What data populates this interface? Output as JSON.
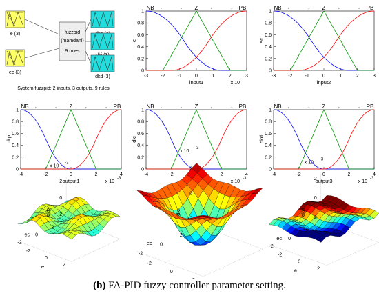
{
  "fis": {
    "inputs": [
      {
        "label": "e (3)",
        "color": "#ffff66"
      },
      {
        "label": "ec (3)",
        "color": "#ffff66"
      }
    ],
    "center_lines": [
      "fuzzpid",
      "(mamdani)",
      "9 rules"
    ],
    "outputs": [
      {
        "label": "dkp (3)",
        "color": "#22dddd"
      },
      {
        "label": "dki (3)",
        "color": "#22dddd"
      },
      {
        "label": "dkd (3)",
        "color": "#22dddd"
      }
    ],
    "system_text": "System fuzzpid: 2 inputs, 3 outputs, 9 rules"
  },
  "chart_data": [
    {
      "type": "line",
      "ylabel": "e",
      "xlabel": "input1",
      "exponent": "x 10",
      "xlim": [
        -3,
        3
      ],
      "ylim": [
        0,
        1
      ],
      "xticks": [
        "-3",
        "-2",
        "-1",
        "0",
        "1",
        "2",
        "3"
      ],
      "yticks": [
        "0",
        "0.2",
        "0.4",
        "0.6",
        "0.8",
        "1"
      ],
      "mf_labels": [
        "NB",
        "Z",
        "PB"
      ],
      "series": [
        {
          "shape": "zmf",
          "params": [
            -3,
            1.5
          ],
          "color": "#0000ff"
        },
        {
          "shape": "trimf",
          "params": [
            -2,
            0,
            2
          ],
          "color": "#009900"
        },
        {
          "shape": "smf",
          "params": [
            -1.5,
            3
          ],
          "color": "#ff0000"
        }
      ]
    },
    {
      "type": "line",
      "ylabel": "ec",
      "xlabel": "input2",
      "exponent": "",
      "xlim": [
        -3,
        3
      ],
      "ylim": [
        0,
        1
      ],
      "xticks": [
        "-3",
        "-2",
        "-1",
        "0",
        "1",
        "2",
        "3"
      ],
      "yticks": [
        "0",
        "0.2",
        "0.4",
        "0.6",
        "0.8",
        "1"
      ],
      "mf_labels": [
        "NB",
        "Z",
        "PB"
      ],
      "series": [
        {
          "shape": "zmf",
          "params": [
            -3,
            1.5
          ],
          "color": "#0000ff"
        },
        {
          "shape": "trimf",
          "params": [
            -2,
            0,
            2
          ],
          "color": "#009900"
        },
        {
          "shape": "smf",
          "params": [
            -1.5,
            3
          ],
          "color": "#ff0000"
        }
      ]
    },
    {
      "type": "line",
      "ylabel": "dkp",
      "xlabel": "output1",
      "exponent": "x 10",
      "exponent_power": "-3",
      "xlim": [
        -4,
        4
      ],
      "ylim": [
        0,
        1
      ],
      "xticks": [
        "-4",
        "-2",
        "0",
        "2",
        "4"
      ],
      "yticks": [
        "0",
        "0.2",
        "0.4",
        "0.6",
        "0.8",
        "1"
      ],
      "mf_labels": [
        "NB",
        "Z",
        "PB"
      ],
      "series": [
        {
          "shape": "zmf",
          "params": [
            -4,
            0
          ],
          "color": "#0000ff"
        },
        {
          "shape": "trimf",
          "params": [
            -2,
            0,
            2
          ],
          "color": "#009900"
        },
        {
          "shape": "smf",
          "params": [
            0,
            4
          ],
          "color": "#ff0000"
        }
      ]
    },
    {
      "type": "line",
      "ylabel": "dki",
      "xlabel": "output2",
      "exponent": "x 10",
      "exponent_power": "-3",
      "xlim": [
        -4,
        4
      ],
      "ylim": [
        0,
        1
      ],
      "xticks": [
        "-4",
        "-2",
        "0",
        "2",
        "4"
      ],
      "yticks": [
        "0",
        "0.2",
        "0.4",
        "0.6",
        "0.8",
        "1"
      ],
      "mf_labels": [
        "NB",
        "Z",
        "PB"
      ],
      "series": [
        {
          "shape": "zmf",
          "params": [
            -4,
            0
          ],
          "color": "#0000ff"
        },
        {
          "shape": "trimf",
          "params": [
            -2,
            0,
            2
          ],
          "color": "#009900"
        },
        {
          "shape": "smf",
          "params": [
            0,
            4
          ],
          "color": "#ff0000"
        }
      ]
    },
    {
      "type": "line",
      "ylabel": "dkd",
      "xlabel": "output3",
      "exponent": "x 10",
      "exponent_power": "-3",
      "xlim": [
        -4,
        4
      ],
      "ylim": [
        0,
        1
      ],
      "xticks": [
        "-4",
        "-2",
        "0",
        "2",
        "4"
      ],
      "yticks": [
        "0",
        "0.2",
        "0.4",
        "0.6",
        "0.8",
        "1"
      ],
      "mf_labels": [
        "NB",
        "Z",
        "PB"
      ],
      "series": [
        {
          "shape": "zmf",
          "params": [
            -4,
            0
          ],
          "color": "#0000ff"
        },
        {
          "shape": "trimf",
          "params": [
            -2,
            0,
            2
          ],
          "color": "#009900"
        },
        {
          "shape": "smf",
          "params": [
            0,
            4
          ],
          "color": "#ff0000"
        }
      ]
    },
    {
      "type": "surface",
      "zlabel": "dkp",
      "xlabel": "e",
      "ylabel": "ec",
      "exponent": "x 10",
      "exponent_power": "-3",
      "mode": "saddle",
      "zlim": [
        -2,
        2
      ],
      "zticks": [
        "2",
        "0",
        "-2"
      ],
      "xticks": [
        "-2",
        "0",
        "2"
      ],
      "yticks": [
        "2",
        "0",
        "-2"
      ]
    },
    {
      "type": "surface",
      "zlabel": "dki",
      "xlabel": "e",
      "ylabel": "ec",
      "exponent": "x 10",
      "exponent_power": "-3",
      "mode": "bowl",
      "zlim": [
        -2,
        2
      ],
      "zticks": [
        "2",
        "0",
        "-2"
      ],
      "xticks": [
        "-2",
        "0",
        "2"
      ],
      "yticks": [
        "2",
        "0",
        "-2"
      ]
    },
    {
      "type": "surface",
      "zlabel": "dkd",
      "xlabel": "e",
      "ylabel": "ec",
      "exponent": "x 10",
      "exponent_power": "-3",
      "mode": "slope",
      "zlim": [
        -2,
        2
      ],
      "zticks": [
        "2",
        "0",
        "-2"
      ],
      "xticks": [
        "-2",
        "0",
        "2"
      ],
      "yticks": [
        "2",
        "0",
        "-2"
      ]
    }
  ],
  "caption": {
    "tag": "(b)",
    "text": " FA-PID fuzzy controller parameter setting."
  }
}
